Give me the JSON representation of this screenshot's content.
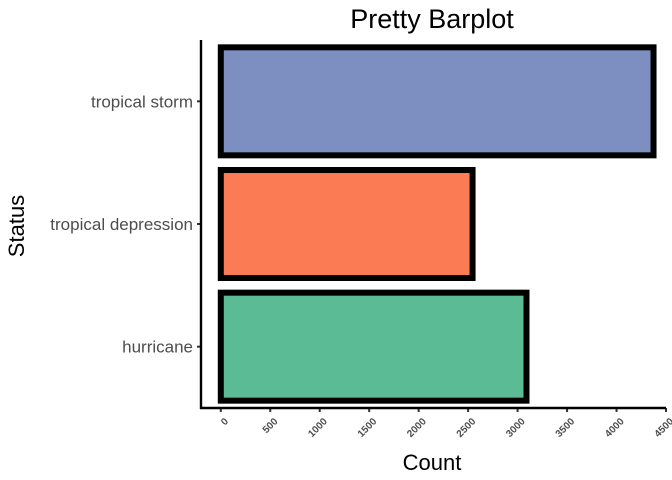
{
  "chart_data": {
    "type": "bar",
    "orientation": "horizontal",
    "title": "Pretty Barplot",
    "xlabel": "Count",
    "ylabel": "Status",
    "categories": [
      "hurricane",
      "tropical depression",
      "tropical storm"
    ],
    "values": [
      3090,
      2545,
      4374
    ],
    "colors": [
      "#5ABB94",
      "#FB7B54",
      "#7C8FC0"
    ],
    "bar_outline_color": "#000000",
    "xlim": [
      -200,
      4500
    ],
    "x_ticks": [
      0,
      500,
      1000,
      1500,
      2000,
      2500,
      3000,
      3500,
      4000,
      4500
    ],
    "x_tick_labels": [
      "0",
      "500",
      "1000",
      "1500",
      "2000",
      "2500",
      "3000",
      "3500",
      "4000",
      "4500"
    ],
    "x_tick_label_rotation_deg": -45,
    "grid": false,
    "legend": "none"
  }
}
